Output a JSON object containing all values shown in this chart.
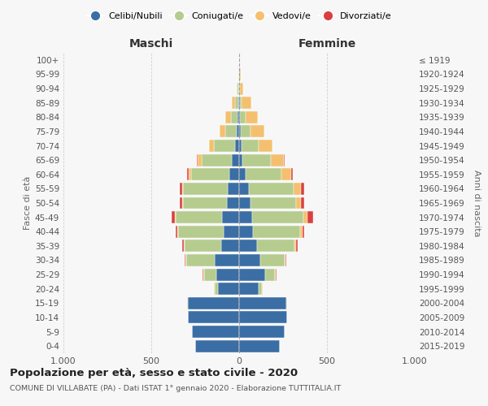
{
  "age_groups": [
    "0-4",
    "5-9",
    "10-14",
    "15-19",
    "20-24",
    "25-29",
    "30-34",
    "35-39",
    "40-44",
    "45-49",
    "50-54",
    "55-59",
    "60-64",
    "65-69",
    "70-74",
    "75-79",
    "80-84",
    "85-89",
    "90-94",
    "95-99",
    "100+"
  ],
  "birth_years": [
    "2015-2019",
    "2010-2014",
    "2005-2009",
    "2000-2004",
    "1995-1999",
    "1990-1994",
    "1985-1989",
    "1980-1984",
    "1975-1979",
    "1970-1974",
    "1965-1969",
    "1960-1964",
    "1955-1959",
    "1950-1954",
    "1945-1949",
    "1940-1944",
    "1935-1939",
    "1930-1934",
    "1925-1929",
    "1920-1924",
    "≤ 1919"
  ],
  "maschi": {
    "celibi": [
      250,
      270,
      290,
      290,
      120,
      130,
      140,
      100,
      90,
      95,
      70,
      65,
      55,
      40,
      25,
      15,
      8,
      5,
      2,
      1,
      0
    ],
    "coniugati": [
      0,
      0,
      0,
      5,
      20,
      70,
      160,
      210,
      255,
      265,
      250,
      255,
      220,
      175,
      120,
      65,
      40,
      18,
      5,
      2,
      0
    ],
    "vedovi": [
      0,
      0,
      0,
      0,
      2,
      5,
      5,
      5,
      5,
      5,
      5,
      5,
      10,
      20,
      25,
      30,
      30,
      20,
      6,
      2,
      0
    ],
    "divorziati": [
      0,
      0,
      0,
      0,
      0,
      2,
      5,
      10,
      12,
      20,
      15,
      15,
      10,
      5,
      0,
      0,
      0,
      0,
      0,
      0,
      0
    ]
  },
  "femmine": {
    "nubili": [
      230,
      260,
      275,
      270,
      110,
      150,
      120,
      100,
      80,
      75,
      65,
      55,
      35,
      20,
      12,
      8,
      5,
      3,
      1,
      0,
      0
    ],
    "coniugate": [
      0,
      0,
      0,
      5,
      20,
      55,
      140,
      215,
      265,
      290,
      260,
      255,
      205,
      160,
      100,
      55,
      30,
      12,
      4,
      2,
      0
    ],
    "vedove": [
      0,
      0,
      0,
      0,
      2,
      5,
      5,
      10,
      15,
      25,
      25,
      40,
      55,
      75,
      80,
      80,
      70,
      55,
      20,
      5,
      0
    ],
    "divorziate": [
      0,
      0,
      0,
      0,
      0,
      2,
      5,
      8,
      12,
      30,
      20,
      20,
      10,
      5,
      0,
      0,
      0,
      0,
      0,
      0,
      0
    ]
  },
  "colors": {
    "celibi": "#3a6ea5",
    "coniugati": "#b5cc8e",
    "vedovi": "#f4c06f",
    "divorziati": "#d94040"
  },
  "legend_labels": [
    "Celibi/Nubili",
    "Coniugati/e",
    "Vedovi/e",
    "Divorziati/e"
  ],
  "title": "Popolazione per età, sesso e stato civile - 2020",
  "subtitle": "COMUNE DI VILLABATE (PA) - Dati ISTAT 1° gennaio 2020 - Elaborazione TUTTITALIA.IT",
  "xlabel_left": "Maschi",
  "xlabel_right": "Femmine",
  "ylabel_left": "Fasce di età",
  "ylabel_right": "Anni di nascita",
  "xlim": 1000,
  "background_color": "#f7f7f7"
}
